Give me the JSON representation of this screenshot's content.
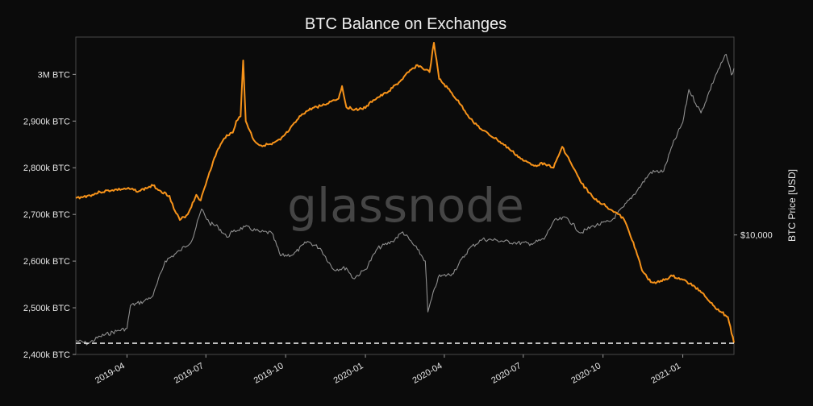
{
  "chart_data": {
    "type": "line",
    "title": "BTC Balance on Exchanges",
    "watermark": "glassnode",
    "ylabel_right": "BTC Price [USD]",
    "y_left_ticks": [
      {
        "value": 2400,
        "label": "2,400k BTC"
      },
      {
        "value": 2500,
        "label": "2,500k BTC"
      },
      {
        "value": 2600,
        "label": "2,600k BTC"
      },
      {
        "value": 2700,
        "label": "2,700k BTC"
      },
      {
        "value": 2800,
        "label": "2,800k BTC"
      },
      {
        "value": 2900,
        "label": "2,900k BTC"
      },
      {
        "value": 3000,
        "label": "3M BTC"
      }
    ],
    "y_left_unit": "k BTC",
    "ylim_left": [
      2400,
      3080
    ],
    "y_right_scale": "log",
    "y_right_ticks": [
      {
        "value": 10000,
        "label": "$10,000"
      }
    ],
    "ylim_right": [
      3200,
      66000
    ],
    "x_ticks": [
      {
        "date": "2019-04-01",
        "label": "2019-04"
      },
      {
        "date": "2019-07-01",
        "label": "2019-07"
      },
      {
        "date": "2019-10-01",
        "label": "2019-10"
      },
      {
        "date": "2020-01-01",
        "label": "2020-01"
      },
      {
        "date": "2020-04-01",
        "label": "2020-04"
      },
      {
        "date": "2020-07-01",
        "label": "2020-07"
      },
      {
        "date": "2020-10-01",
        "label": "2020-10"
      },
      {
        "date": "2021-01-01",
        "label": "2021-01"
      }
    ],
    "xlim": [
      "2019-02-01",
      "2021-03-01"
    ],
    "reference_line": {
      "value": 2424,
      "style": "dashed",
      "color": "#ffffff"
    },
    "grid": false,
    "series": [
      {
        "axis": "left",
        "color": "#f7931a",
        "points": [
          [
            "2019-02-01",
            2735
          ],
          [
            "2019-02-10",
            2738
          ],
          [
            "2019-02-20",
            2742
          ],
          [
            "2019-03-01",
            2748
          ],
          [
            "2019-03-15",
            2752
          ],
          [
            "2019-04-01",
            2755
          ],
          [
            "2019-04-15",
            2750
          ],
          [
            "2019-05-01",
            2762
          ],
          [
            "2019-05-10",
            2750
          ],
          [
            "2019-05-20",
            2740
          ],
          [
            "2019-05-25",
            2712
          ],
          [
            "2019-06-01",
            2688
          ],
          [
            "2019-06-10",
            2700
          ],
          [
            "2019-06-20",
            2742
          ],
          [
            "2019-06-25",
            2730
          ],
          [
            "2019-07-05",
            2790
          ],
          [
            "2019-07-15",
            2840
          ],
          [
            "2019-07-25",
            2870
          ],
          [
            "2019-08-01",
            2875
          ],
          [
            "2019-08-05",
            2900
          ],
          [
            "2019-08-10",
            2910
          ],
          [
            "2019-08-13",
            3030
          ],
          [
            "2019-08-16",
            2900
          ],
          [
            "2019-08-25",
            2860
          ],
          [
            "2019-09-01",
            2848
          ],
          [
            "2019-09-15",
            2850
          ],
          [
            "2019-09-25",
            2860
          ],
          [
            "2019-10-05",
            2880
          ],
          [
            "2019-10-20",
            2915
          ],
          [
            "2019-11-01",
            2928
          ],
          [
            "2019-11-15",
            2935
          ],
          [
            "2019-11-25",
            2945
          ],
          [
            "2019-12-01",
            2948
          ],
          [
            "2019-12-05",
            2975
          ],
          [
            "2019-12-10",
            2930
          ],
          [
            "2019-12-20",
            2925
          ],
          [
            "2020-01-01",
            2928
          ],
          [
            "2020-01-10",
            2945
          ],
          [
            "2020-01-25",
            2960
          ],
          [
            "2020-02-10",
            2985
          ],
          [
            "2020-02-20",
            3005
          ],
          [
            "2020-03-01",
            3020
          ],
          [
            "2020-03-10",
            3010
          ],
          [
            "2020-03-15",
            3005
          ],
          [
            "2020-03-20",
            3068
          ],
          [
            "2020-03-26",
            2990
          ],
          [
            "2020-04-05",
            2970
          ],
          [
            "2020-04-20",
            2935
          ],
          [
            "2020-05-01",
            2905
          ],
          [
            "2020-05-15",
            2880
          ],
          [
            "2020-06-01",
            2860
          ],
          [
            "2020-06-15",
            2840
          ],
          [
            "2020-07-01",
            2815
          ],
          [
            "2020-07-15",
            2805
          ],
          [
            "2020-07-25",
            2810
          ],
          [
            "2020-08-05",
            2800
          ],
          [
            "2020-08-15",
            2845
          ],
          [
            "2020-08-25",
            2810
          ],
          [
            "2020-09-05",
            2770
          ],
          [
            "2020-09-20",
            2735
          ],
          [
            "2020-10-01",
            2722
          ],
          [
            "2020-10-15",
            2705
          ],
          [
            "2020-10-25",
            2690
          ],
          [
            "2020-11-05",
            2640
          ],
          [
            "2020-11-15",
            2580
          ],
          [
            "2020-11-25",
            2555
          ],
          [
            "2020-12-05",
            2555
          ],
          [
            "2020-12-20",
            2568
          ],
          [
            "2021-01-01",
            2560
          ],
          [
            "2021-01-15",
            2545
          ],
          [
            "2021-01-25",
            2530
          ],
          [
            "2021-02-05",
            2505
          ],
          [
            "2021-02-15",
            2490
          ],
          [
            "2021-02-22",
            2480
          ],
          [
            "2021-03-01",
            2425
          ]
        ]
      },
      {
        "axis": "right",
        "color": "#8f8f8f",
        "points": [
          [
            "2019-02-01",
            3650
          ],
          [
            "2019-02-15",
            3550
          ],
          [
            "2019-03-01",
            3800
          ],
          [
            "2019-03-20",
            4000
          ],
          [
            "2019-04-01",
            4100
          ],
          [
            "2019-04-05",
            5100
          ],
          [
            "2019-04-20",
            5300
          ],
          [
            "2019-05-01",
            5600
          ],
          [
            "2019-05-15",
            7800
          ],
          [
            "2019-06-01",
            8600
          ],
          [
            "2019-06-15",
            9500
          ],
          [
            "2019-06-26",
            12800
          ],
          [
            "2019-07-05",
            11200
          ],
          [
            "2019-07-15",
            10800
          ],
          [
            "2019-07-25",
            9800
          ],
          [
            "2019-08-01",
            10300
          ],
          [
            "2019-08-15",
            10800
          ],
          [
            "2019-09-01",
            10300
          ],
          [
            "2019-09-15",
            10200
          ],
          [
            "2019-09-25",
            8200
          ],
          [
            "2019-10-10",
            8300
          ],
          [
            "2019-10-26",
            9400
          ],
          [
            "2019-11-10",
            8800
          ],
          [
            "2019-11-25",
            7200
          ],
          [
            "2019-12-10",
            7300
          ],
          [
            "2019-12-18",
            6600
          ],
          [
            "2020-01-01",
            7200
          ],
          [
            "2020-01-15",
            8800
          ],
          [
            "2020-02-01",
            9400
          ],
          [
            "2020-02-13",
            10300
          ],
          [
            "2020-03-01",
            8700
          ],
          [
            "2020-03-10",
            7800
          ],
          [
            "2020-03-13",
            4800
          ],
          [
            "2020-03-25",
            6700
          ],
          [
            "2020-04-10",
            6900
          ],
          [
            "2020-04-30",
            8800
          ],
          [
            "2020-05-15",
            9600
          ],
          [
            "2020-06-01",
            9500
          ],
          [
            "2020-06-20",
            9300
          ],
          [
            "2020-07-10",
            9200
          ],
          [
            "2020-07-25",
            9600
          ],
          [
            "2020-08-05",
            11400
          ],
          [
            "2020-08-20",
            11800
          ],
          [
            "2020-09-05",
            10200
          ],
          [
            "2020-09-20",
            10900
          ],
          [
            "2020-10-10",
            11400
          ],
          [
            "2020-10-25",
            13100
          ],
          [
            "2020-11-10",
            15400
          ],
          [
            "2020-11-25",
            18200
          ],
          [
            "2020-12-10",
            18400
          ],
          [
            "2020-12-20",
            23500
          ],
          [
            "2021-01-01",
            29300
          ],
          [
            "2021-01-08",
            40000
          ],
          [
            "2021-01-22",
            32000
          ],
          [
            "2021-02-08",
            46000
          ],
          [
            "2021-02-20",
            56000
          ],
          [
            "2021-02-26",
            46000
          ],
          [
            "2021-03-01",
            49000
          ]
        ]
      }
    ]
  }
}
